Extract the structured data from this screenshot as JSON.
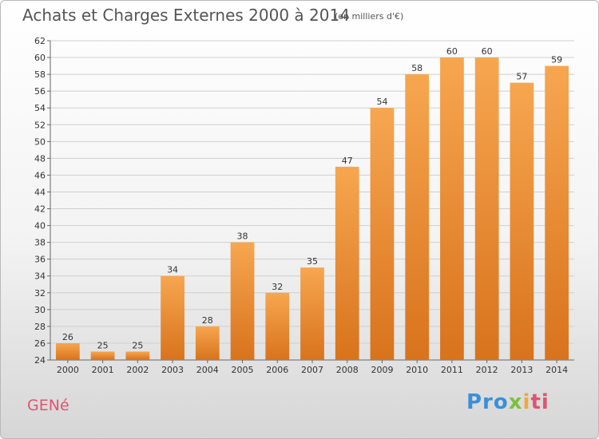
{
  "header": {
    "title": "Achats et Charges Externes 2000 à 2014",
    "subtitle": "(en milliers d'€)"
  },
  "footer": {
    "commune": "GENé",
    "logo": [
      "Pro",
      "x",
      "i",
      "ti"
    ]
  },
  "colors": {
    "bar_top": "#f7a650",
    "bar_bottom": "#d8731c",
    "grid": "#cfcfcf",
    "accent_pink": "#e0546e"
  },
  "chart_data": {
    "type": "bar",
    "title": "Achats et Charges Externes 2000 à 2014",
    "subtitle": "(en milliers d'€)",
    "categories": [
      "2000",
      "2001",
      "2002",
      "2003",
      "2004",
      "2005",
      "2006",
      "2007",
      "2008",
      "2009",
      "2010",
      "2011",
      "2012",
      "2013",
      "2014"
    ],
    "values": [
      26,
      25,
      25,
      34,
      28,
      38,
      32,
      35,
      47,
      54,
      58,
      60,
      60,
      57,
      59
    ],
    "ylim": [
      24,
      62
    ],
    "yticks": [
      24,
      26,
      28,
      30,
      32,
      34,
      36,
      38,
      40,
      42,
      44,
      46,
      48,
      50,
      52,
      54,
      56,
      58,
      60,
      62
    ],
    "grid": true,
    "xlabel": "",
    "ylabel": ""
  }
}
